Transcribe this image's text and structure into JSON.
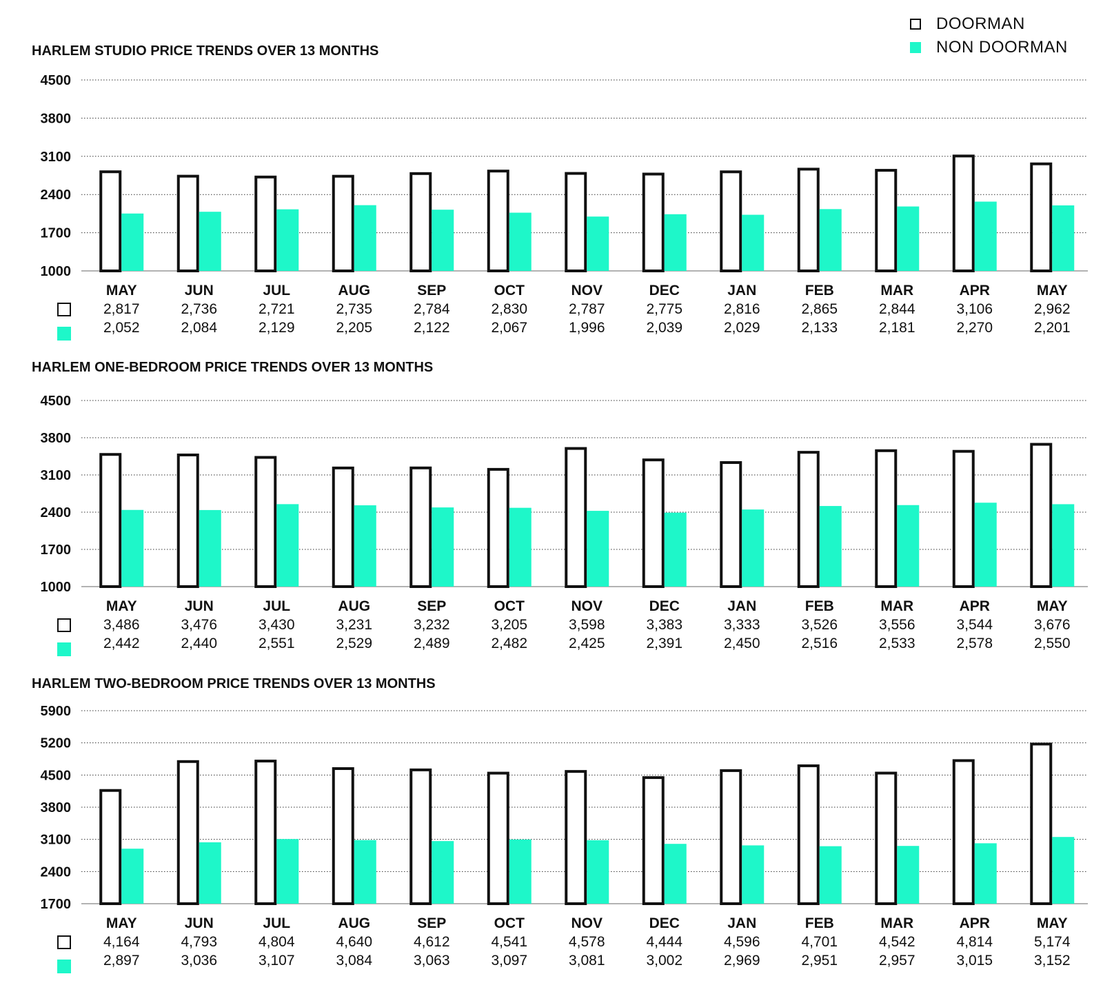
{
  "legend": {
    "doorman_label": "DOORMAN",
    "non_doorman_label": "NON DOORMAN"
  },
  "colors": {
    "doorman_fill": "#ffffff",
    "doorman_stroke": "#111111",
    "non_doorman": "#1ef7c9",
    "grid": "#333333",
    "text": "#111111"
  },
  "chart_data": [
    {
      "type": "bar",
      "title": "HARLEM STUDIO PRICE TRENDS OVER 13 MONTHS",
      "categories": [
        "MAY",
        "JUN",
        "JUL",
        "AUG",
        "SEP",
        "OCT",
        "NOV",
        "DEC",
        "JAN",
        "FEB",
        "MAR",
        "APR",
        "MAY"
      ],
      "yticks": [
        1000,
        1700,
        2400,
        3100,
        3800,
        4500
      ],
      "ylim": [
        1000,
        4500
      ],
      "series": [
        {
          "name": "DOORMAN",
          "values": [
            2817,
            2736,
            2721,
            2735,
            2784,
            2830,
            2787,
            2775,
            2816,
            2865,
            2844,
            3106,
            2962
          ],
          "labels": [
            "2,817",
            "2,736",
            "2,721",
            "2,735",
            "2,784",
            "2,830",
            "2,787",
            "2,775",
            "2,816",
            "2,865",
            "2,844",
            "3,106",
            "2,962"
          ]
        },
        {
          "name": "NON DOORMAN",
          "values": [
            2052,
            2084,
            2129,
            2205,
            2122,
            2067,
            1996,
            2039,
            2029,
            2133,
            2181,
            2270,
            2201
          ],
          "labels": [
            "2,052",
            "2,084",
            "2,129",
            "2,205",
            "2,122",
            "2,067",
            "1,996",
            "2,039",
            "2,029",
            "2,133",
            "2,181",
            "2,270",
            "2,201"
          ]
        }
      ]
    },
    {
      "type": "bar",
      "title": "HARLEM ONE-BEDROOM PRICE TRENDS OVER 13 MONTHS",
      "categories": [
        "MAY",
        "JUN",
        "JUL",
        "AUG",
        "SEP",
        "OCT",
        "NOV",
        "DEC",
        "JAN",
        "FEB",
        "MAR",
        "APR",
        "MAY"
      ],
      "yticks": [
        1000,
        1700,
        2400,
        3100,
        3800,
        4500
      ],
      "ylim": [
        1000,
        4500
      ],
      "series": [
        {
          "name": "DOORMAN",
          "values": [
            3486,
            3476,
            3430,
            3231,
            3232,
            3205,
            3598,
            3383,
            3333,
            3526,
            3556,
            3544,
            3676
          ],
          "labels": [
            "3,486",
            "3,476",
            "3,430",
            "3,231",
            "3,232",
            "3,205",
            "3,598",
            "3,383",
            "3,333",
            "3,526",
            "3,556",
            "3,544",
            "3,676"
          ]
        },
        {
          "name": "NON DOORMAN",
          "values": [
            2442,
            2440,
            2551,
            2529,
            2489,
            2482,
            2425,
            2391,
            2450,
            2516,
            2533,
            2578,
            2550
          ],
          "labels": [
            "2,442",
            "2,440",
            "2,551",
            "2,529",
            "2,489",
            "2,482",
            "2,425",
            "2,391",
            "2,450",
            "2,516",
            "2,533",
            "2,578",
            "2,550"
          ]
        }
      ]
    },
    {
      "type": "bar",
      "title": "HARLEM TWO-BEDROOM PRICE TRENDS OVER 13 MONTHS",
      "categories": [
        "MAY",
        "JUN",
        "JUL",
        "AUG",
        "SEP",
        "OCT",
        "NOV",
        "DEC",
        "JAN",
        "FEB",
        "MAR",
        "APR",
        "MAY"
      ],
      "yticks": [
        1700,
        2400,
        3100,
        3800,
        4500,
        5200,
        5900
      ],
      "ylim": [
        1700,
        5900
      ],
      "series": [
        {
          "name": "DOORMAN",
          "values": [
            4164,
            4793,
            4804,
            4640,
            4612,
            4541,
            4578,
            4444,
            4596,
            4701,
            4542,
            4814,
            5174
          ],
          "labels": [
            "4,164",
            "4,793",
            "4,804",
            "4,640",
            "4,612",
            "4,541",
            "4,578",
            "4,444",
            "4,596",
            "4,701",
            "4,542",
            "4,814",
            "5,174"
          ]
        },
        {
          "name": "NON DOORMAN",
          "values": [
            2897,
            3036,
            3107,
            3084,
            3063,
            3097,
            3081,
            3002,
            2969,
            2951,
            2957,
            3015,
            3152
          ],
          "labels": [
            "2,897",
            "3,036",
            "3,107",
            "3,084",
            "3,063",
            "3,097",
            "3,081",
            "3,002",
            "2,969",
            "2,951",
            "2,957",
            "3,015",
            "3,152"
          ]
        }
      ]
    }
  ]
}
